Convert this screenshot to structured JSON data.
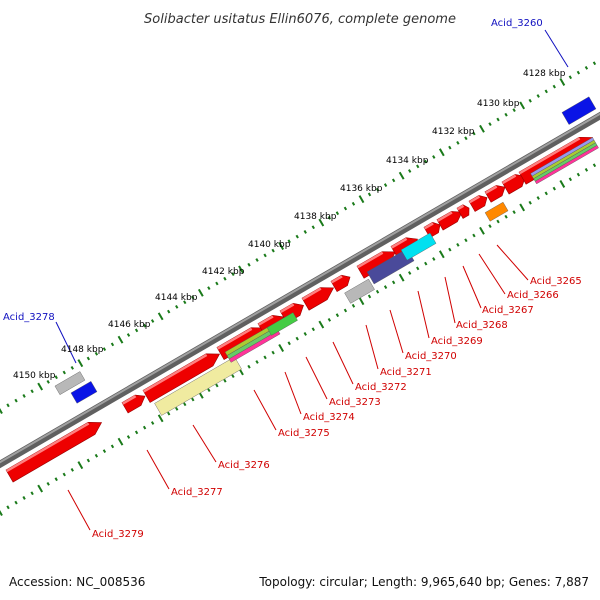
{
  "title": "Solibacter usitatus Ellin6076, complete genome",
  "footer": {
    "accession": "Accession: NC_008536",
    "summary": "Topology: circular; Length: 9,965,640 bp; Genes: 7,887"
  },
  "scale_labels": [
    "4128 kbp",
    "4130 kbp",
    "4132 kbp",
    "4134 kbp",
    "4136 kbp",
    "4138 kbp",
    "4140 kbp",
    "4142 kbp",
    "4144 kbp",
    "4146 kbp",
    "4148 kbp",
    "4150 kbp"
  ],
  "gene_labels": {
    "acid_3260": "Acid_3260",
    "acid_3265": "Acid_3265",
    "acid_3266": "Acid_3266",
    "acid_3267": "Acid_3267",
    "acid_3268": "Acid_3268",
    "acid_3269": "Acid_3269",
    "acid_3270": "Acid_3270",
    "acid_3271": "Acid_3271",
    "acid_3272": "Acid_3272",
    "acid_3273": "Acid_3273",
    "acid_3274": "Acid_3274",
    "acid_3275": "Acid_3275",
    "acid_3276": "Acid_3276",
    "acid_3277": "Acid_3277",
    "acid_3278": "Acid_3278",
    "acid_3279": "Acid_3279"
  },
  "colors": {
    "cds": "#ee0000",
    "backbone": "#808080",
    "scale_ticks": "#1a7a1a",
    "label_red": "#d00000",
    "label_blue": "#1010c0",
    "blue_feature": "#0a14e6",
    "grey_feature": "#b8b8b8",
    "navy_feature": "#4a4a9a",
    "cyan_feature": "#00e0f0",
    "green_feature": "#44cc44",
    "orange_feature": "#ff8800",
    "khaki_feature": "#f0eba0"
  }
}
